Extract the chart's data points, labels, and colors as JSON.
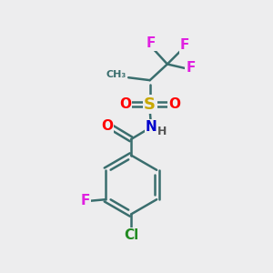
{
  "bg_color": "#ededee",
  "bond_color": "#3a6e6e",
  "bond_width": 1.8,
  "atom_colors": {
    "F": "#e020e0",
    "S": "#c8a800",
    "O": "#ff0000",
    "N": "#0000cc",
    "H": "#555555",
    "Cl": "#228b22",
    "C": "#3a6e6e"
  },
  "font_size_main": 11,
  "font_size_small": 9
}
